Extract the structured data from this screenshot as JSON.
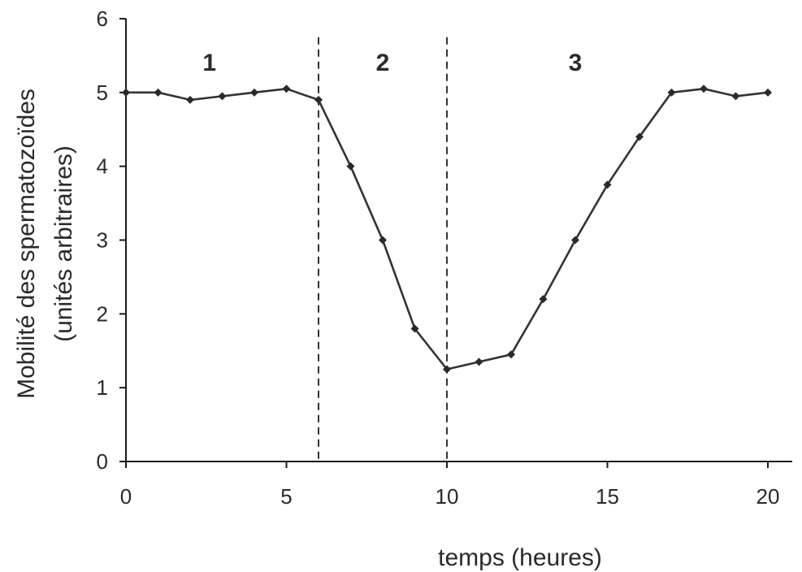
{
  "chart_data": {
    "type": "line",
    "xlabel": "temps (heures)",
    "ylabel_line1": "Mobilité des spermatozoïdes",
    "ylabel_line2": "(unités arbitraires)",
    "xlim": [
      0,
      20
    ],
    "ylim": [
      0,
      6
    ],
    "x_ticks": [
      0,
      5,
      10,
      15,
      20
    ],
    "y_ticks": [
      0,
      1,
      2,
      3,
      4,
      5,
      6
    ],
    "grid": false,
    "series": [
      {
        "x": [
          0,
          1,
          2,
          3,
          4,
          5,
          6,
          7,
          8,
          9,
          10,
          11,
          12,
          13,
          14,
          15,
          16,
          17,
          18,
          19,
          20
        ],
        "values": [
          5.0,
          5.0,
          4.9,
          4.95,
          5.0,
          5.05,
          4.9,
          4.0,
          3.0,
          1.8,
          1.25,
          1.35,
          1.45,
          2.2,
          3.0,
          3.75,
          4.4,
          5.0,
          5.05,
          4.95,
          5.0
        ]
      }
    ],
    "dividers": [
      6,
      10
    ],
    "phases": [
      {
        "label": "1",
        "x": 2.6
      },
      {
        "label": "2",
        "x": 8.0
      },
      {
        "label": "3",
        "x": 14.0
      }
    ],
    "colors": {
      "line": "#333333",
      "text": "#2a2a2a"
    }
  }
}
